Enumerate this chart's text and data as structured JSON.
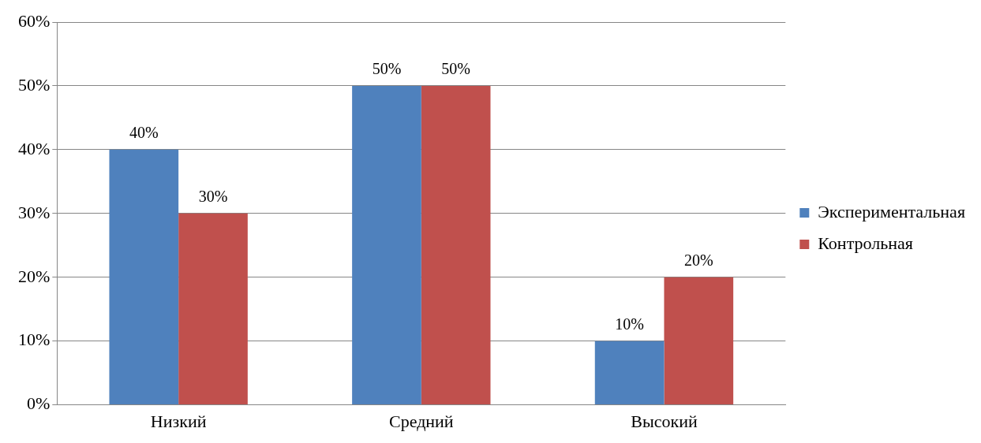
{
  "chart_data": {
    "type": "bar",
    "categories": [
      "Низкий",
      "Средний",
      "Высокий"
    ],
    "series": [
      {
        "name": "Экспериментальная",
        "color": "#4f81bd",
        "values": [
          40,
          50,
          10
        ],
        "value_labels": [
          "40%",
          "50%",
          "10%"
        ]
      },
      {
        "name": "Контрольная",
        "color": "#c0504d",
        "values": [
          30,
          50,
          20
        ],
        "value_labels": [
          "30%",
          "50%",
          "20%"
        ]
      }
    ],
    "ylim": [
      0,
      60
    ],
    "yticks": [
      {
        "value": 0,
        "label": "0%"
      },
      {
        "value": 10,
        "label": "10%"
      },
      {
        "value": 20,
        "label": "20%"
      },
      {
        "value": 30,
        "label": "30%"
      },
      {
        "value": 40,
        "label": "40%"
      },
      {
        "value": 50,
        "label": "50%"
      },
      {
        "value": 60,
        "label": "60%"
      }
    ],
    "grid": "y",
    "legend": "right"
  }
}
